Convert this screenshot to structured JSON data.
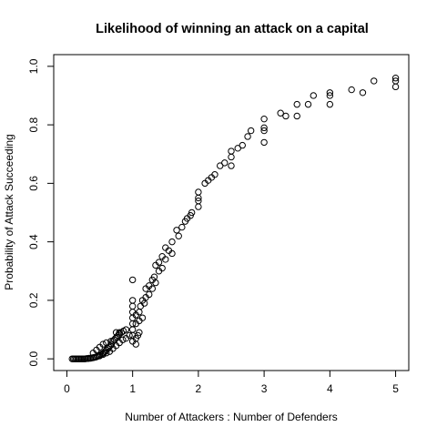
{
  "chart_data": {
    "type": "scatter",
    "title": "Likelihood of winning an attack on a capital",
    "xlabel": "Number of Attackers : Number of Defenders",
    "ylabel": "Probability of Attack Succeeding",
    "xlim": [
      -0.2,
      5.2
    ],
    "ylim": [
      -0.04,
      1.04
    ],
    "x_ticks": [
      0,
      1,
      2,
      3,
      4,
      5
    ],
    "y_ticks": [
      0.0,
      0.2,
      0.4,
      0.6,
      0.8,
      1.0
    ],
    "x_tick_labels": [
      "0",
      "1",
      "2",
      "3",
      "4",
      "5"
    ],
    "y_tick_labels": [
      "0.0",
      "0.2",
      "0.4",
      "0.6",
      "0.8",
      "1.0"
    ],
    "marker": "open-circle",
    "points": [
      [
        0.08,
        0.0
      ],
      [
        0.1,
        0.0
      ],
      [
        0.12,
        0.0
      ],
      [
        0.14,
        0.0
      ],
      [
        0.16,
        0.0
      ],
      [
        0.18,
        0.0
      ],
      [
        0.2,
        0.0
      ],
      [
        0.22,
        0.0
      ],
      [
        0.24,
        0.0
      ],
      [
        0.26,
        0.0
      ],
      [
        0.28,
        0.0
      ],
      [
        0.3,
        0.001
      ],
      [
        0.32,
        0.001
      ],
      [
        0.34,
        0.002
      ],
      [
        0.36,
        0.002
      ],
      [
        0.38,
        0.003
      ],
      [
        0.4,
        0.004
      ],
      [
        0.42,
        0.005
      ],
      [
        0.44,
        0.006
      ],
      [
        0.46,
        0.008
      ],
      [
        0.48,
        0.01
      ],
      [
        0.5,
        0.012
      ],
      [
        0.52,
        0.015
      ],
      [
        0.54,
        0.018
      ],
      [
        0.56,
        0.02
      ],
      [
        0.58,
        0.025
      ],
      [
        0.6,
        0.03
      ],
      [
        0.62,
        0.035
      ],
      [
        0.64,
        0.04
      ],
      [
        0.66,
        0.045
      ],
      [
        0.68,
        0.05
      ],
      [
        0.7,
        0.06
      ],
      [
        0.72,
        0.065
      ],
      [
        0.74,
        0.07
      ],
      [
        0.76,
        0.075
      ],
      [
        0.78,
        0.08
      ],
      [
        0.8,
        0.085
      ],
      [
        0.83,
        0.09
      ],
      [
        0.86,
        0.095
      ],
      [
        0.9,
        0.1
      ],
      [
        0.5,
        0.01
      ],
      [
        0.55,
        0.015
      ],
      [
        0.6,
        0.02
      ],
      [
        0.65,
        0.025
      ],
      [
        0.7,
        0.035
      ],
      [
        0.75,
        0.045
      ],
      [
        0.8,
        0.055
      ],
      [
        0.85,
        0.065
      ],
      [
        0.9,
        0.07
      ],
      [
        0.95,
        0.08
      ],
      [
        0.4,
        0.02
      ],
      [
        0.45,
        0.03
      ],
      [
        0.5,
        0.04
      ],
      [
        0.55,
        0.05
      ],
      [
        0.6,
        0.055
      ],
      [
        0.67,
        0.06
      ],
      [
        0.75,
        0.09
      ],
      [
        0.8,
        0.09
      ],
      [
        1.0,
        0.06
      ],
      [
        1.0,
        0.08
      ],
      [
        1.0,
        0.1
      ],
      [
        1.0,
        0.12
      ],
      [
        1.0,
        0.14
      ],
      [
        1.0,
        0.16
      ],
      [
        1.0,
        0.18
      ],
      [
        1.0,
        0.2
      ],
      [
        1.0,
        0.27
      ],
      [
        1.05,
        0.05
      ],
      [
        1.05,
        0.07
      ],
      [
        1.05,
        0.12
      ],
      [
        1.05,
        0.15
      ],
      [
        1.08,
        0.08
      ],
      [
        1.1,
        0.09
      ],
      [
        1.1,
        0.13
      ],
      [
        1.1,
        0.16
      ],
      [
        1.12,
        0.18
      ],
      [
        1.15,
        0.14
      ],
      [
        1.15,
        0.2
      ],
      [
        1.18,
        0.19
      ],
      [
        1.2,
        0.21
      ],
      [
        1.2,
        0.24
      ],
      [
        1.25,
        0.22
      ],
      [
        1.25,
        0.25
      ],
      [
        1.3,
        0.24
      ],
      [
        1.3,
        0.27
      ],
      [
        1.33,
        0.28
      ],
      [
        1.35,
        0.26
      ],
      [
        1.35,
        0.32
      ],
      [
        1.4,
        0.3
      ],
      [
        1.4,
        0.33
      ],
      [
        1.45,
        0.31
      ],
      [
        1.45,
        0.35
      ],
      [
        1.5,
        0.34
      ],
      [
        1.5,
        0.38
      ],
      [
        1.55,
        0.37
      ],
      [
        1.6,
        0.4
      ],
      [
        1.6,
        0.36
      ],
      [
        1.67,
        0.44
      ],
      [
        1.7,
        0.42
      ],
      [
        1.75,
        0.45
      ],
      [
        1.8,
        0.47
      ],
      [
        1.83,
        0.48
      ],
      [
        1.88,
        0.49
      ],
      [
        1.9,
        0.5
      ],
      [
        2.0,
        0.52
      ],
      [
        2.0,
        0.55
      ],
      [
        2.0,
        0.57
      ],
      [
        2.0,
        0.54
      ],
      [
        2.1,
        0.6
      ],
      [
        2.15,
        0.61
      ],
      [
        2.2,
        0.62
      ],
      [
        2.25,
        0.63
      ],
      [
        2.33,
        0.66
      ],
      [
        2.4,
        0.67
      ],
      [
        2.5,
        0.66
      ],
      [
        2.5,
        0.69
      ],
      [
        2.5,
        0.71
      ],
      [
        2.6,
        0.72
      ],
      [
        2.67,
        0.73
      ],
      [
        2.75,
        0.76
      ],
      [
        2.8,
        0.78
      ],
      [
        3.0,
        0.74
      ],
      [
        3.0,
        0.78
      ],
      [
        3.0,
        0.79
      ],
      [
        3.0,
        0.82
      ],
      [
        3.25,
        0.84
      ],
      [
        3.33,
        0.83
      ],
      [
        3.5,
        0.83
      ],
      [
        3.5,
        0.87
      ],
      [
        3.67,
        0.87
      ],
      [
        3.75,
        0.9
      ],
      [
        4.0,
        0.87
      ],
      [
        4.0,
        0.9
      ],
      [
        4.0,
        0.91
      ],
      [
        4.33,
        0.92
      ],
      [
        4.5,
        0.91
      ],
      [
        4.67,
        0.95
      ],
      [
        5.0,
        0.93
      ],
      [
        5.0,
        0.95
      ],
      [
        5.0,
        0.96
      ]
    ],
    "grid": false,
    "legend": "none"
  }
}
